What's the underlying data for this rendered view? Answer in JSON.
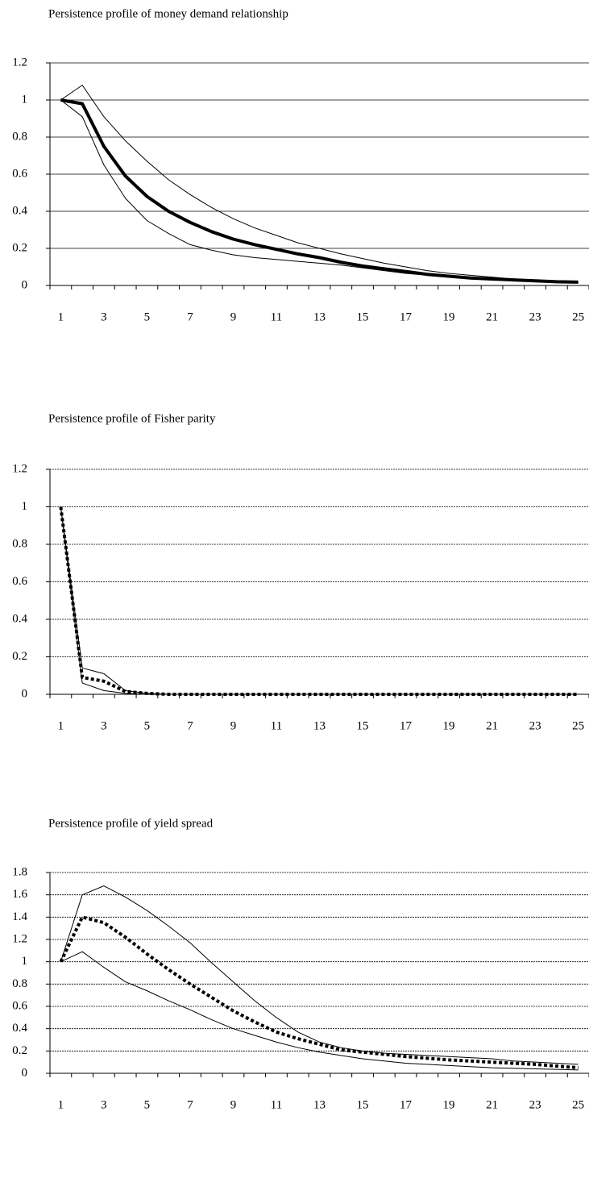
{
  "chart_data": [
    {
      "type": "line",
      "title": "Persistence profile of money demand relationship",
      "categories": [
        1,
        null,
        3,
        null,
        5,
        null,
        7,
        null,
        9,
        null,
        11,
        null,
        13,
        null,
        15,
        null,
        17,
        null,
        19,
        null,
        21,
        null,
        23,
        null,
        25
      ],
      "ylim": [
        0,
        1.2
      ],
      "yticks": [
        0,
        0.2,
        0.4,
        0.6,
        0.8,
        1,
        1.2
      ],
      "grid": true,
      "grid_style": "solid",
      "series": [
        {
          "color": "#000000",
          "width": 1,
          "dash": "solid",
          "values": [
            1,
            1.08,
            0.91,
            0.78,
            0.67,
            0.57,
            0.49,
            0.42,
            0.36,
            0.31,
            0.27,
            0.23,
            0.2,
            0.17,
            0.145,
            0.12,
            0.1,
            0.08,
            0.065,
            0.055,
            0.045,
            0.035,
            0.03,
            0.025,
            0.02
          ]
        },
        {
          "color": "#000000",
          "width": 4,
          "dash": "solid",
          "values": [
            1,
            0.98,
            0.75,
            0.59,
            0.48,
            0.4,
            0.34,
            0.29,
            0.25,
            0.22,
            0.195,
            0.17,
            0.15,
            0.125,
            0.105,
            0.09,
            0.075,
            0.06,
            0.05,
            0.04,
            0.035,
            0.03,
            0.025,
            0.02,
            0.018
          ]
        },
        {
          "color": "#000000",
          "width": 1,
          "dash": "solid",
          "values": [
            1,
            0.91,
            0.65,
            0.47,
            0.35,
            0.28,
            0.22,
            0.19,
            0.165,
            0.15,
            0.14,
            0.13,
            0.12,
            0.11,
            0.095,
            0.08,
            0.065,
            0.055,
            0.045,
            0.035,
            0.03,
            0.025,
            0.02,
            0.018,
            0.015
          ]
        }
      ]
    },
    {
      "type": "line",
      "title": "Persistence profile of Fisher parity",
      "categories": [
        1,
        null,
        3,
        null,
        5,
        null,
        7,
        null,
        9,
        null,
        11,
        null,
        13,
        null,
        15,
        null,
        17,
        null,
        19,
        null,
        21,
        null,
        23,
        null,
        25
      ],
      "ylim": [
        0,
        1.2
      ],
      "yticks": [
        0,
        0.2,
        0.4,
        0.6,
        0.8,
        1,
        1.2
      ],
      "grid": true,
      "grid_style": "dashed",
      "series": [
        {
          "color": "#000000",
          "width": 1,
          "dash": "solid",
          "values": [
            1,
            0.14,
            0.11,
            0.02,
            0.005,
            0,
            0,
            0,
            0,
            0,
            0,
            0,
            0,
            0,
            0,
            0,
            0,
            0,
            0,
            0,
            0,
            0,
            0,
            0,
            0
          ]
        },
        {
          "color": "#000000",
          "width": 4,
          "dash": "dotted",
          "values": [
            1,
            0.09,
            0.07,
            0.015,
            0.005,
            0,
            0,
            0,
            0,
            0,
            0,
            0,
            0,
            0,
            0,
            0,
            0,
            0,
            0,
            0,
            0,
            0,
            0,
            0,
            0
          ]
        },
        {
          "color": "#000000",
          "width": 1,
          "dash": "solid",
          "values": [
            1,
            0.06,
            0.02,
            0.005,
            0,
            0,
            0,
            0,
            0,
            0,
            0,
            0,
            0,
            0,
            0,
            0,
            0,
            0,
            0,
            0,
            0,
            0,
            0,
            0,
            0
          ]
        }
      ]
    },
    {
      "type": "line",
      "title": "Persistence profile of yield spread",
      "categories": [
        1,
        null,
        3,
        null,
        5,
        null,
        7,
        null,
        9,
        null,
        11,
        null,
        13,
        null,
        15,
        null,
        17,
        null,
        19,
        null,
        21,
        null,
        23,
        null,
        25
      ],
      "ylim": [
        0,
        1.8
      ],
      "yticks": [
        0,
        0.2,
        0.4,
        0.6,
        0.8,
        1,
        1.2,
        1.4,
        1.6,
        1.8
      ],
      "grid": true,
      "grid_style": "dashed",
      "series": [
        {
          "color": "#000000",
          "width": 1,
          "dash": "solid",
          "values": [
            1,
            1.6,
            1.68,
            1.58,
            1.46,
            1.32,
            1.17,
            0.99,
            0.82,
            0.65,
            0.5,
            0.37,
            0.28,
            0.23,
            0.2,
            0.18,
            0.17,
            0.16,
            0.15,
            0.14,
            0.13,
            0.11,
            0.1,
            0.09,
            0.08
          ]
        },
        {
          "color": "#000000",
          "width": 4,
          "dash": "dotted",
          "values": [
            1,
            1.4,
            1.35,
            1.22,
            1.07,
            0.93,
            0.8,
            0.68,
            0.56,
            0.46,
            0.37,
            0.31,
            0.26,
            0.21,
            0.19,
            0.17,
            0.15,
            0.135,
            0.12,
            0.11,
            0.1,
            0.09,
            0.08,
            0.065,
            0.05
          ]
        },
        {
          "color": "#000000",
          "width": 1,
          "dash": "solid",
          "values": [
            1,
            1.09,
            0.95,
            0.82,
            0.74,
            0.65,
            0.57,
            0.48,
            0.4,
            0.34,
            0.28,
            0.23,
            0.19,
            0.16,
            0.13,
            0.11,
            0.09,
            0.08,
            0.07,
            0.06,
            0.05,
            0.045,
            0.04,
            0.035,
            0.03
          ]
        }
      ]
    }
  ]
}
